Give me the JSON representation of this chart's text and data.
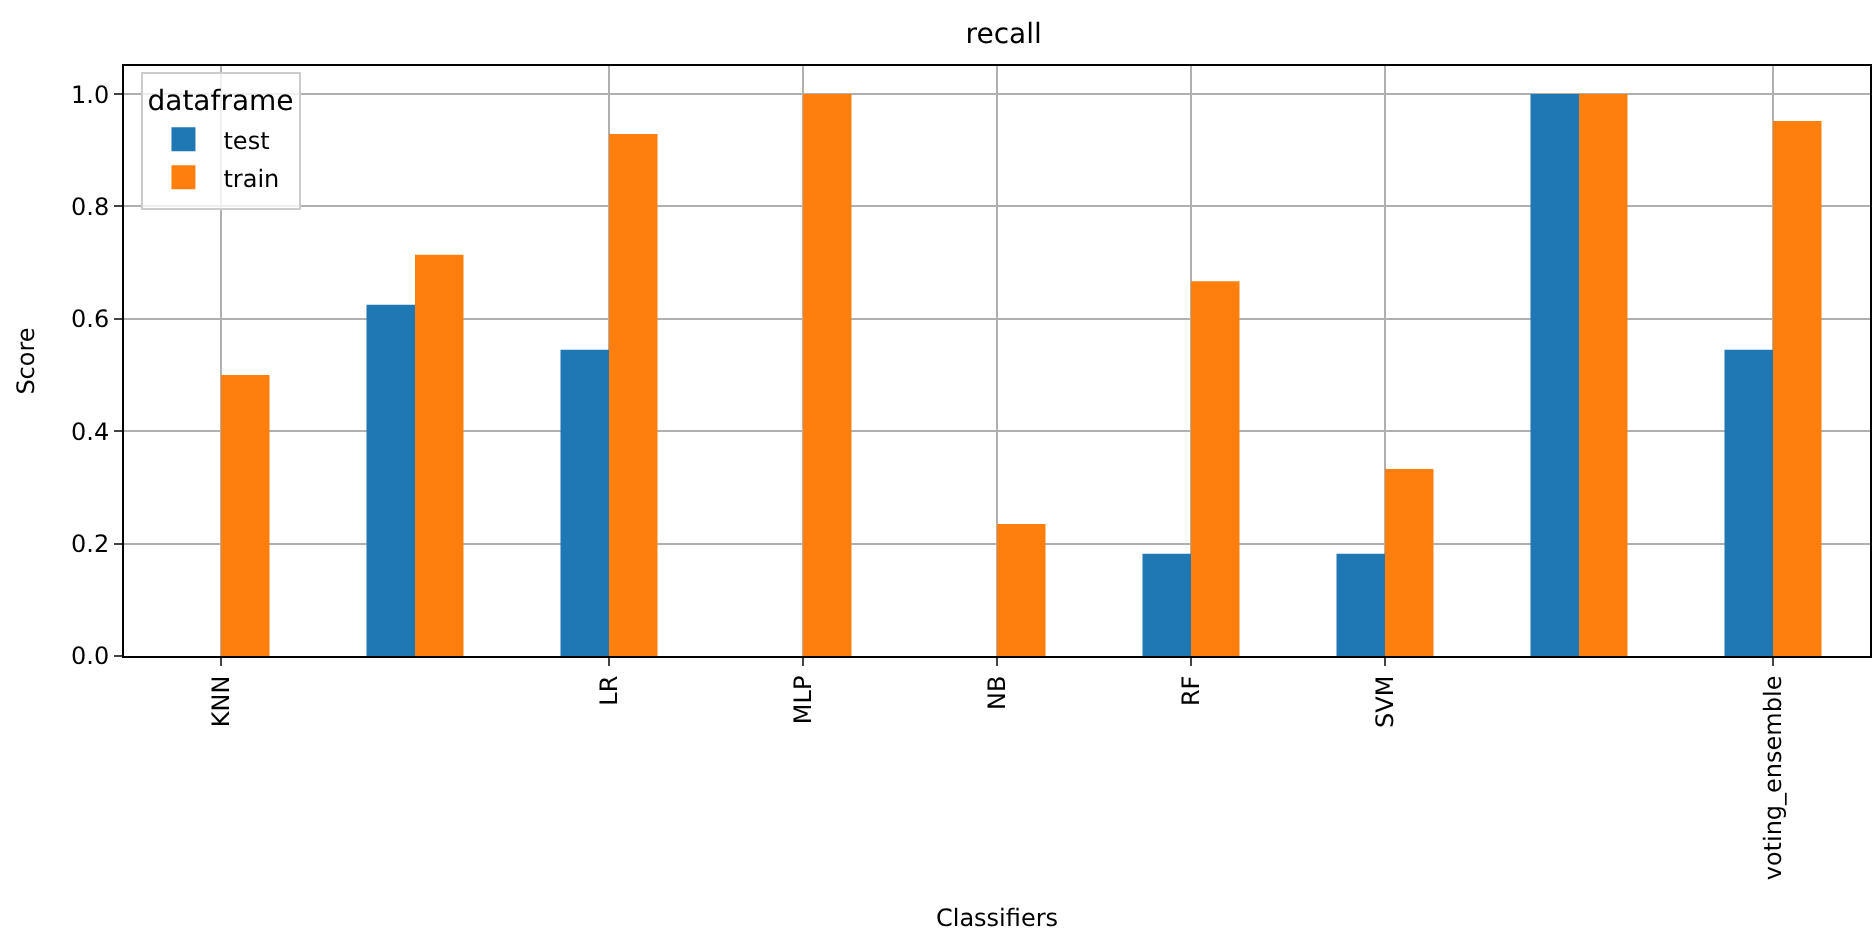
{
  "chart_data": {
    "type": "bar",
    "title": "recall",
    "xlabel": "Classifiers",
    "ylabel": "Score",
    "legend_title": "dataframe",
    "categories": [
      "KNN",
      null,
      "LR",
      "MLP",
      "NB",
      "RF",
      "SVM",
      null,
      "voting_ensemble"
    ],
    "series": [
      {
        "name": "test",
        "color": "#1f77b4",
        "values": [
          0,
          0.625,
          0.545,
          0,
          0,
          0.182,
          0.182,
          1.0,
          0.545
        ]
      },
      {
        "name": "train",
        "color": "#ff7f0e",
        "values": [
          0.5,
          0.714,
          0.929,
          1.0,
          0.235,
          0.667,
          0.333,
          1.0,
          0.952
        ]
      }
    ],
    "ylim": [
      0,
      1.05
    ],
    "yticks": [
      {
        "value": 0,
        "label": "0.0"
      },
      {
        "value": 0.2,
        "label": "0.2"
      },
      {
        "value": 0.4,
        "label": "0.4"
      },
      {
        "value": 0.6,
        "label": "0.6"
      },
      {
        "value": 0.8,
        "label": "0.8"
      },
      {
        "value": 1.0,
        "label": "1.0"
      }
    ],
    "grid": true,
    "legend": "top left"
  }
}
